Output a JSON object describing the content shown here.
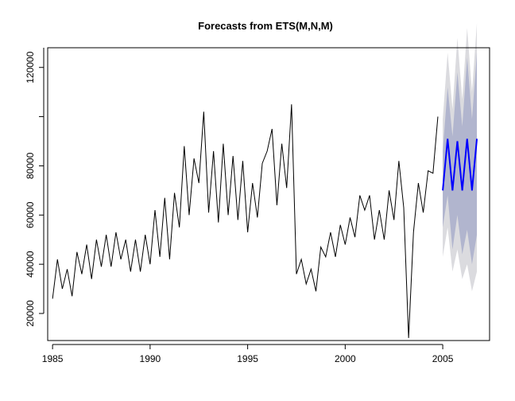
{
  "chart_data": {
    "type": "line",
    "title": "Forecasts from ETS(M,N,M)",
    "xlabel": "",
    "ylabel": "",
    "xlim": [
      1984.75,
      2007.4
    ],
    "ylim": [
      9000,
      128000
    ],
    "x_ticks": [
      "1985",
      "1990",
      "1995",
      "2000",
      "2005"
    ],
    "y_ticks": [
      "20000",
      "40000",
      "60000",
      "80000",
      "120000"
    ],
    "grid": false,
    "legend": "none",
    "colors": {
      "history": "#000000",
      "forecast": "#0000ff",
      "ci80": "#b1b5ce",
      "ci95": "#dbdbdf"
    },
    "history": {
      "start": 1985.0,
      "frequency": 4,
      "values": [
        26000,
        42000,
        30000,
        38000,
        27000,
        45000,
        36000,
        48000,
        34000,
        50000,
        39000,
        52000,
        39000,
        53000,
        42000,
        50000,
        37000,
        50000,
        37000,
        52000,
        40000,
        62000,
        43000,
        67000,
        42000,
        69000,
        55000,
        88000,
        60000,
        83000,
        73000,
        102000,
        61000,
        86000,
        57000,
        89000,
        60000,
        84000,
        58000,
        82000,
        53000,
        73000,
        59000,
        81000,
        86000,
        95000,
        64000,
        89000,
        71000,
        105000,
        36000,
        42000,
        32000,
        38000,
        29000,
        47000,
        43000,
        53000,
        43000,
        56000,
        48000,
        59000,
        51000,
        68000,
        62000,
        68000,
        50000,
        62000,
        50000,
        70000,
        58000,
        82000,
        63000,
        10000,
        53000,
        73000,
        61000,
        78000,
        77000,
        100000
      ]
    },
    "forecast": {
      "start": 2005.0,
      "frequency": 4,
      "mean": [
        70000,
        91000,
        70000,
        90000,
        70000,
        91000,
        70000,
        91000
      ],
      "lo80": [
        55000,
        68000,
        46000,
        60000,
        44000,
        54000,
        40000,
        52000
      ],
      "hi80": [
        86000,
        112000,
        92000,
        118000,
        96000,
        124000,
        99000,
        126000
      ],
      "lo95": [
        43000,
        55000,
        37000,
        46000,
        34000,
        40000,
        29000,
        37000
      ],
      "hi95": [
        99000,
        126000,
        103000,
        132000,
        107000,
        136000,
        110000,
        138000
      ]
    }
  }
}
